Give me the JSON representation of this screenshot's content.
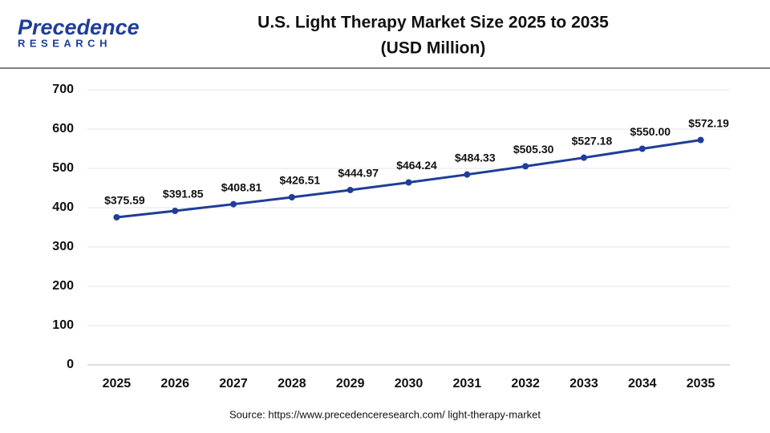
{
  "logo": {
    "name": "Precedence",
    "tagline": "RESEARCH"
  },
  "chart_data": {
    "type": "line",
    "title": "U.S. Light Therapy Market Size 2025 to 2035",
    "subtitle": "(USD Million)",
    "categories": [
      "2025",
      "2026",
      "2027",
      "2028",
      "2029",
      "2030",
      "2031",
      "2032",
      "2033",
      "2034",
      "2035"
    ],
    "series": [
      {
        "name": "U.S. Light Therapy Market Size",
        "color": "#1f3d99",
        "values": [
          375.59,
          391.85,
          408.81,
          426.51,
          444.97,
          464.24,
          484.33,
          505.3,
          527.18,
          550.0,
          572.19
        ],
        "value_labels": [
          "$375.59",
          "$391.85",
          "$408.81",
          "$426.51",
          "$444.97",
          "$464.24",
          "$484.33",
          "$505.30",
          "$527.18",
          "$550.00",
          "$572.19"
        ]
      }
    ],
    "ylim": [
      0,
      700
    ],
    "yticks": [
      0,
      100,
      200,
      300,
      400,
      500,
      600,
      700
    ],
    "grid": true,
    "source": "Source: https://www.precedenceresearch.com/ light-therapy-market"
  }
}
